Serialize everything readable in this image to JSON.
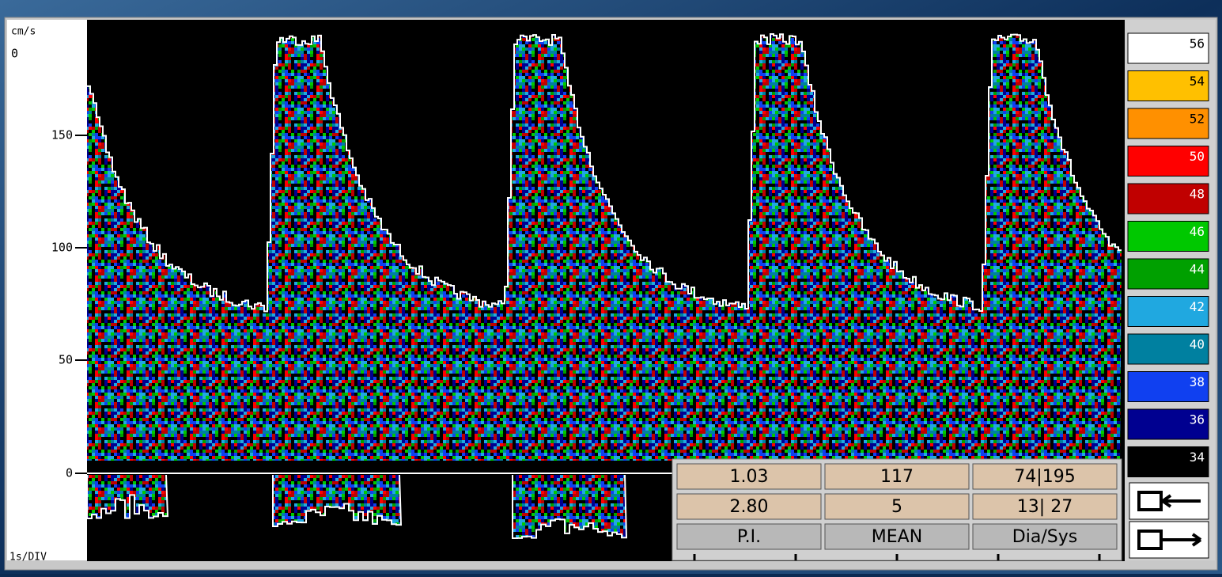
{
  "axis": {
    "unit": "cm/s",
    "top_label": "0",
    "ticks": [
      "150",
      "100",
      "50",
      "0"
    ],
    "x_label": "1s/DIV"
  },
  "scale": {
    "labels": [
      "56",
      "54",
      "52",
      "50",
      "48",
      "46",
      "44",
      "42",
      "40",
      "38",
      "36",
      "34"
    ],
    "colors": [
      "#ffffff",
      "#ffc000",
      "#ff9000",
      "#ff0000",
      "#c00000",
      "#00c800",
      "#00a000",
      "#20a8e0",
      "#0080a0",
      "#1040f0",
      "#000090",
      "#000000"
    ]
  },
  "table": {
    "rows": [
      [
        "1.03",
        "117",
        "74|195"
      ],
      [
        "2.80",
        "5",
        "13| 27"
      ],
      [
        "P.I.",
        "MEAN",
        "Dia/Sys"
      ]
    ]
  }
}
